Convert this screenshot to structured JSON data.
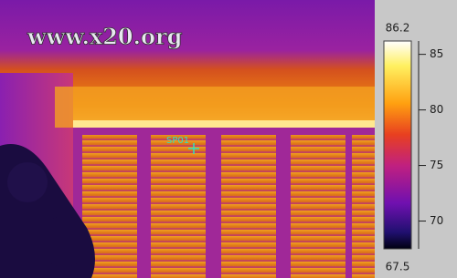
{
  "image": {
    "watermark": "www.x20.org",
    "spot_label": "SP01"
  },
  "scale": {
    "max": 86.2,
    "min": 67.5,
    "ticks": [
      85,
      80,
      75,
      70
    ]
  }
}
